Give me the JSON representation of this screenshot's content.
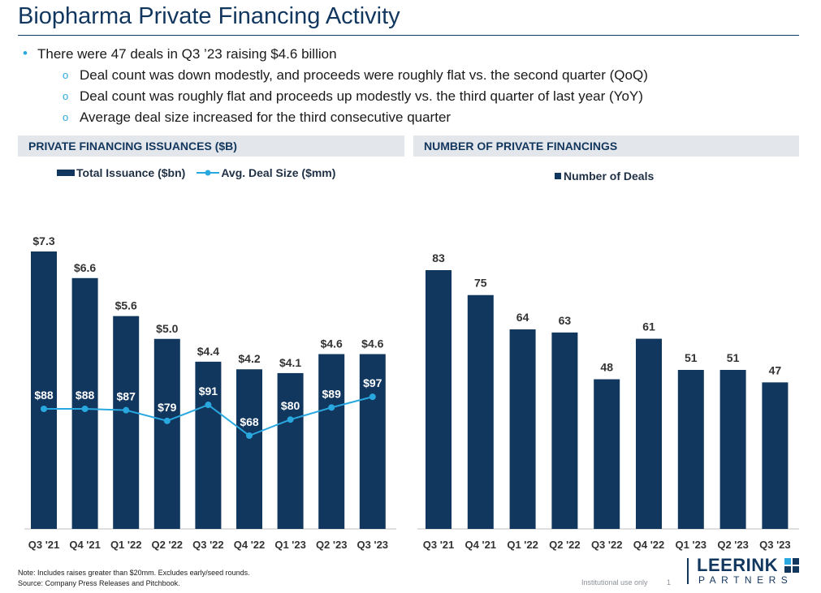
{
  "page": {
    "title": "Biopharma Private Financing Activity",
    "bullet_main": "There were 47 deals in Q3 ’23 raising $4.6 billion",
    "sub_bullets": [
      "Deal count was down modestly, and proceeds were roughly flat vs. the second quarter (QoQ)",
      "Deal count was roughly flat and proceeds up modestly vs. the third quarter of last year (YoY)",
      "Average deal size increased for the third consecutive quarter"
    ],
    "bullet_glyph": "•",
    "sub_bullet_glyph": "o",
    "note": "Note: Includes raises greater than $20mm. Excludes early/seed rounds.",
    "source": "Source: Company Press Releases and Pitchbook.",
    "institutional": "Institutional use only",
    "page_number": "1",
    "logo_top": "LEERINK",
    "logo_bottom": "PARTNERS"
  },
  "colors": {
    "bar": "#12375f",
    "line": "#29a8e0",
    "header_bg": "#e3e6ea",
    "title": "#12375f"
  },
  "chart_data": [
    {
      "type": "bar",
      "title": "PRIVATE FINANCING ISSUANCES ($B)",
      "categories": [
        "Q3 '21",
        "Q4 '21",
        "Q1 '22",
        "Q2 '22",
        "Q3 '22",
        "Q4 '22",
        "Q1 '23",
        "Q2 '23",
        "Q3 '23"
      ],
      "series": [
        {
          "name": "Total Issuance ($bn)",
          "type": "bar",
          "values": [
            7.3,
            6.6,
            5.6,
            5.0,
            4.4,
            4.2,
            4.1,
            4.6,
            4.6
          ],
          "labels": [
            "$7.3",
            "$6.6",
            "$5.6",
            "$5.0",
            "$4.4",
            "$4.2",
            "$4.1",
            "$4.6",
            "$4.6"
          ]
        },
        {
          "name": "Avg. Deal Size ($mm)",
          "type": "line",
          "values": [
            88,
            88,
            87,
            79,
            91,
            68,
            80,
            89,
            97
          ],
          "labels": [
            "$88",
            "$88",
            "$87",
            "$79",
            "$91",
            "$68",
            "$80",
            "$89",
            "$97"
          ]
        }
      ],
      "legend_position": "top-left",
      "grid": false
    },
    {
      "type": "bar",
      "title": "NUMBER OF PRIVATE FINANCINGS",
      "categories": [
        "Q3 '21",
        "Q4 '21",
        "Q1 '22",
        "Q2 '22",
        "Q3 '22",
        "Q4 '22",
        "Q1 '23",
        "Q2 '23",
        "Q3 '23"
      ],
      "series": [
        {
          "name": "Number of Deals",
          "values": [
            83,
            75,
            64,
            63,
            48,
            61,
            51,
            51,
            47
          ],
          "labels": [
            "83",
            "75",
            "64",
            "63",
            "48",
            "61",
            "51",
            "51",
            "47"
          ]
        }
      ],
      "legend_position": "top-center",
      "grid": false
    }
  ]
}
